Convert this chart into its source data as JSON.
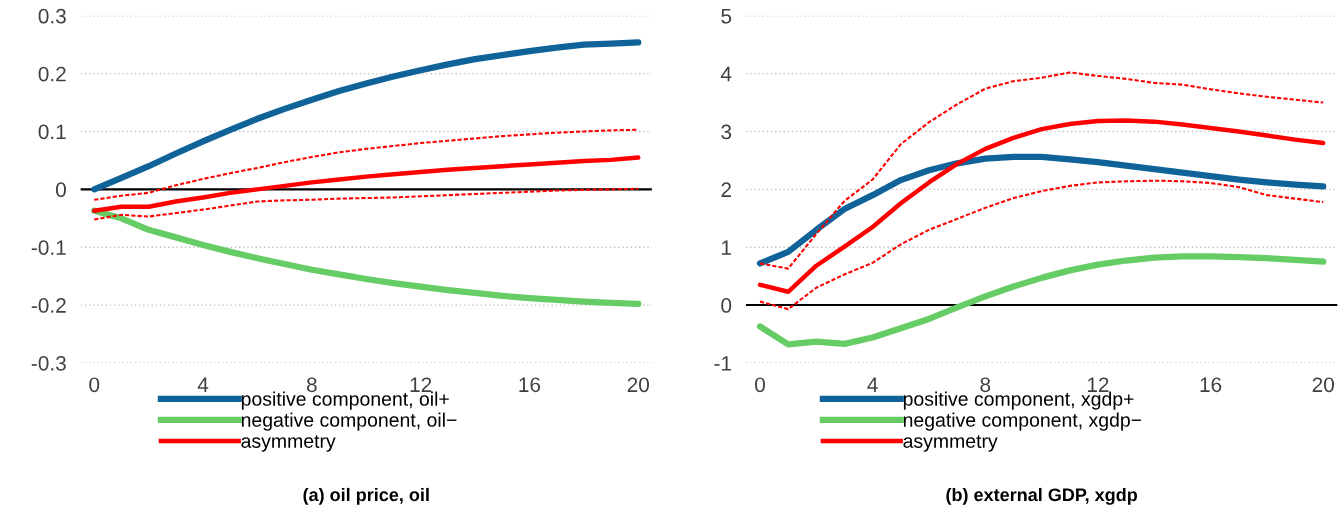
{
  "chart_data": [
    {
      "type": "line",
      "title": "(a) oil price, oil",
      "x": [
        0,
        1,
        2,
        3,
        4,
        5,
        6,
        7,
        8,
        9,
        10,
        11,
        12,
        13,
        14,
        15,
        16,
        17,
        18,
        19,
        20
      ],
      "xlim": [
        -0.5,
        20.5
      ],
      "xticks": [
        0,
        4,
        8,
        12,
        16,
        20
      ],
      "ylim": [
        -0.3,
        0.3
      ],
      "yticks": [
        -0.3,
        -0.2,
        -0.1,
        0,
        0.1,
        0.2,
        0.3
      ],
      "grid": "y",
      "legend": "bottom",
      "ref_lines": [
        {
          "axis": "y",
          "value": 0,
          "color": "#000000"
        }
      ],
      "series": [
        {
          "name": "positive component, oil+",
          "color": "#0f6399",
          "values": [
            0,
            0.02,
            0.04,
            0.062,
            0.083,
            0.103,
            0.122,
            0.139,
            0.155,
            0.17,
            0.183,
            0.195,
            0.206,
            0.216,
            0.225,
            0.232,
            0.239,
            0.245,
            0.25,
            0.252,
            0.254
          ]
        },
        {
          "name": "negative component, oil−",
          "color": "#66cc66",
          "values": [
            -0.037,
            -0.05,
            -0.07,
            -0.083,
            -0.096,
            -0.108,
            -0.119,
            -0.129,
            -0.139,
            -0.147,
            -0.155,
            -0.162,
            -0.168,
            -0.174,
            -0.179,
            -0.184,
            -0.188,
            -0.191,
            -0.194,
            -0.196,
            -0.198
          ]
        },
        {
          "name": "asymmetry",
          "color": "#ff0000",
          "values": [
            -0.037,
            -0.03,
            -0.03,
            -0.021,
            -0.014,
            -0.006,
            0.0,
            0.006,
            0.012,
            0.017,
            0.022,
            0.026,
            0.03,
            0.034,
            0.037,
            0.04,
            0.043,
            0.046,
            0.049,
            0.051,
            0.055
          ]
        },
        {
          "color": "#ff0000",
          "line_style": "dashed",
          "values": [
            -0.018,
            -0.011,
            -0.006,
            0.007,
            0.018,
            0.028,
            0.037,
            0.047,
            0.056,
            0.064,
            0.07,
            0.075,
            0.08,
            0.084,
            0.088,
            0.092,
            0.095,
            0.098,
            0.1,
            0.102,
            0.103
          ]
        },
        {
          "color": "#ff0000",
          "line_style": "dashed",
          "values": [
            -0.052,
            -0.044,
            -0.047,
            -0.041,
            -0.035,
            -0.028,
            -0.021,
            -0.019,
            -0.018,
            -0.016,
            -0.015,
            -0.014,
            -0.012,
            -0.01,
            -0.008,
            -0.006,
            -0.004,
            -0.002,
            -0.001,
            0.0,
            0.001
          ]
        }
      ]
    },
    {
      "type": "line",
      "title": "(b) external GDP, xgdp",
      "x": [
        0,
        1,
        2,
        3,
        4,
        5,
        6,
        7,
        8,
        9,
        10,
        11,
        12,
        13,
        14,
        15,
        16,
        17,
        18,
        19,
        20
      ],
      "xlim": [
        -0.5,
        20.5
      ],
      "xticks": [
        0,
        4,
        8,
        12,
        16,
        20
      ],
      "ylim": [
        -1,
        5
      ],
      "yticks": [
        -1,
        0,
        1,
        2,
        3,
        4,
        5
      ],
      "grid": "y",
      "legend": "bottom",
      "ref_lines": [
        {
          "axis": "y",
          "value": 0,
          "color": "#000000"
        }
      ],
      "series": [
        {
          "name": "positive component, xgdp+",
          "color": "#0f6399",
          "values": [
            0.72,
            0.92,
            1.3,
            1.66,
            1.9,
            2.16,
            2.33,
            2.45,
            2.53,
            2.56,
            2.56,
            2.52,
            2.47,
            2.41,
            2.35,
            2.29,
            2.23,
            2.17,
            2.12,
            2.08,
            2.05
          ]
        },
        {
          "name": "negative component, xgdp−",
          "color": "#66cc66",
          "values": [
            -0.37,
            -0.68,
            -0.63,
            -0.67,
            -0.56,
            -0.4,
            -0.24,
            -0.04,
            0.15,
            0.32,
            0.47,
            0.6,
            0.7,
            0.77,
            0.82,
            0.84,
            0.84,
            0.83,
            0.81,
            0.78,
            0.75
          ]
        },
        {
          "name": "asymmetry",
          "color": "#ff0000",
          "values": [
            0.35,
            0.23,
            0.68,
            1.01,
            1.35,
            1.76,
            2.12,
            2.44,
            2.7,
            2.89,
            3.04,
            3.13,
            3.18,
            3.19,
            3.17,
            3.12,
            3.06,
            3.0,
            2.93,
            2.86,
            2.8
          ]
        },
        {
          "color": "#ff0000",
          "line_style": "dashed",
          "values": [
            0.72,
            0.63,
            1.23,
            1.8,
            2.17,
            2.78,
            3.16,
            3.47,
            3.74,
            3.87,
            3.93,
            4.02,
            3.96,
            3.91,
            3.84,
            3.81,
            3.73,
            3.66,
            3.6,
            3.55,
            3.5
          ]
        },
        {
          "color": "#ff0000",
          "line_style": "dashed",
          "values": [
            0.06,
            -0.07,
            0.3,
            0.53,
            0.73,
            1.05,
            1.3,
            1.49,
            1.68,
            1.85,
            1.97,
            2.06,
            2.12,
            2.14,
            2.15,
            2.14,
            2.11,
            2.04,
            1.9,
            1.84,
            1.78
          ]
        }
      ]
    }
  ]
}
